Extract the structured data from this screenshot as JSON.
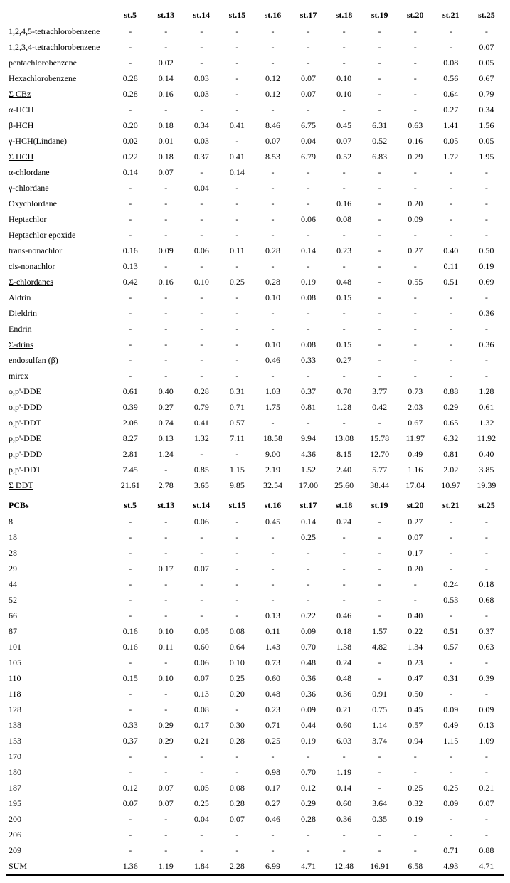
{
  "columns": [
    "st.5",
    "st.13",
    "st.14",
    "st.15",
    "st.16",
    "st.17",
    "st.18",
    "st.19",
    "st.20",
    "st.21",
    "st.25"
  ],
  "section1": {
    "rows": [
      {
        "label": "1,2,4,5-tetrachlorobenzene",
        "vals": [
          "-",
          "-",
          "-",
          "-",
          "-",
          "-",
          "-",
          "-",
          "-",
          "-",
          "-"
        ]
      },
      {
        "label": "1,2,3,4-tetrachlorobenzene",
        "vals": [
          "-",
          "-",
          "-",
          "-",
          "-",
          "-",
          "-",
          "-",
          "-",
          "-",
          "0.07"
        ]
      },
      {
        "label": "pentachlorobenzene",
        "vals": [
          "-",
          "0.02",
          "-",
          "-",
          "-",
          "-",
          "-",
          "-",
          "-",
          "0.08",
          "0.05"
        ]
      },
      {
        "label": "Hexachlorobenzene",
        "vals": [
          "0.28",
          "0.14",
          "0.03",
          "-",
          "0.12",
          "0.07",
          "0.10",
          "-",
          "-",
          "0.56",
          "0.67"
        ]
      },
      {
        "label": "Σ CBz",
        "underline": true,
        "vals": [
          "0.28",
          "0.16",
          "0.03",
          "-",
          "0.12",
          "0.07",
          "0.10",
          "-",
          "-",
          "0.64",
          "0.79"
        ]
      },
      {
        "label": "α-HCH",
        "vals": [
          "-",
          "-",
          "-",
          "-",
          "-",
          "-",
          "-",
          "-",
          "-",
          "0.27",
          "0.34"
        ]
      },
      {
        "label": "β-HCH",
        "vals": [
          "0.20",
          "0.18",
          "0.34",
          "0.41",
          "8.46",
          "6.75",
          "0.45",
          "6.31",
          "0.63",
          "1.41",
          "1.56"
        ]
      },
      {
        "label": "γ-HCH(Lindane)",
        "vals": [
          "0.02",
          "0.01",
          "0.03",
          "-",
          "0.07",
          "0.04",
          "0.07",
          "0.52",
          "0.16",
          "0.05",
          "0.05"
        ]
      },
      {
        "label": "Σ HCH",
        "underline": true,
        "vals": [
          "0.22",
          "0.18",
          "0.37",
          "0.41",
          "8.53",
          "6.79",
          "0.52",
          "6.83",
          "0.79",
          "1.72",
          "1.95"
        ]
      },
      {
        "label": "α-chlordane",
        "vals": [
          "0.14",
          "0.07",
          "-",
          "0.14",
          "-",
          "-",
          "-",
          "-",
          "-",
          "-",
          "-"
        ]
      },
      {
        "label": "γ-chlordane",
        "vals": [
          "-",
          "-",
          "0.04",
          "-",
          "-",
          "-",
          "-",
          "-",
          "-",
          "-",
          "-"
        ]
      },
      {
        "label": "Oxychlordane",
        "vals": [
          "-",
          "-",
          "-",
          "-",
          "-",
          "-",
          "0.16",
          "-",
          "0.20",
          "-",
          "-"
        ]
      },
      {
        "label": "Heptachlor",
        "vals": [
          "-",
          "-",
          "-",
          "-",
          "-",
          "0.06",
          "0.08",
          "-",
          "0.09",
          "-",
          "-"
        ]
      },
      {
        "label": "Heptachlor epoxide",
        "vals": [
          "-",
          "-",
          "-",
          "-",
          "-",
          "-",
          "-",
          "-",
          "-",
          "-",
          "-"
        ]
      },
      {
        "label": "trans-nonachlor",
        "vals": [
          "0.16",
          "0.09",
          "0.06",
          "0.11",
          "0.28",
          "0.14",
          "0.23",
          "-",
          "0.27",
          "0.40",
          "0.50"
        ]
      },
      {
        "label": "cis-nonachlor",
        "vals": [
          "0.13",
          "-",
          "-",
          "-",
          "-",
          "-",
          "-",
          "-",
          "-",
          "0.11",
          "0.19"
        ]
      },
      {
        "label": "Σ-chlordanes",
        "underline": true,
        "vals": [
          "0.42",
          "0.16",
          "0.10",
          "0.25",
          "0.28",
          "0.19",
          "0.48",
          "-",
          "0.55",
          "0.51",
          "0.69"
        ]
      },
      {
        "label": "Aldrin",
        "vals": [
          "-",
          "-",
          "-",
          "-",
          "0.10",
          "0.08",
          "0.15",
          "-",
          "-",
          "-",
          "-"
        ]
      },
      {
        "label": "Dieldrin",
        "vals": [
          "-",
          "-",
          "-",
          "-",
          "-",
          "-",
          "-",
          "-",
          "-",
          "-",
          "0.36"
        ]
      },
      {
        "label": "Endrin",
        "vals": [
          "-",
          "-",
          "-",
          "-",
          "-",
          "-",
          "-",
          "-",
          "-",
          "-",
          "-"
        ]
      },
      {
        "label": "Σ-drins",
        "underline": true,
        "vals": [
          "-",
          "-",
          "-",
          "-",
          "0.10",
          "0.08",
          "0.15",
          "-",
          "-",
          "-",
          "0.36"
        ]
      },
      {
        "label": "endosulfan (β)",
        "vals": [
          "-",
          "-",
          "-",
          "-",
          "0.46",
          "0.33",
          "0.27",
          "-",
          "-",
          "-",
          "-"
        ]
      },
      {
        "label": "mirex",
        "vals": [
          "-",
          "-",
          "-",
          "-",
          "-",
          "-",
          "-",
          "-",
          "-",
          "-",
          "-"
        ]
      },
      {
        "label": "o,p'-DDE",
        "vals": [
          "0.61",
          "0.40",
          "0.28",
          "0.31",
          "1.03",
          "0.37",
          "0.70",
          "3.77",
          "0.73",
          "0.88",
          "1.28"
        ]
      },
      {
        "label": "o,p'-DDD",
        "vals": [
          "0.39",
          "0.27",
          "0.79",
          "0.71",
          "1.75",
          "0.81",
          "1.28",
          "0.42",
          "2.03",
          "0.29",
          "0.61"
        ]
      },
      {
        "label": "o,p'-DDT",
        "vals": [
          "2.08",
          "0.74",
          "0.41",
          "0.57",
          "-",
          "-",
          "-",
          "-",
          "0.67",
          "0.65",
          "1.32"
        ]
      },
      {
        "label": "p,p'-DDE",
        "vals": [
          "8.27",
          "0.13",
          "1.32",
          "7.11",
          "18.58",
          "9.94",
          "13.08",
          "15.78",
          "11.97",
          "6.32",
          "11.92"
        ]
      },
      {
        "label": "p,p'-DDD",
        "vals": [
          "2.81",
          "1.24",
          "-",
          "-",
          "9.00",
          "4.36",
          "8.15",
          "12.70",
          "0.49",
          "0.81",
          "0.40"
        ]
      },
      {
        "label": "p,p'-DDT",
        "vals": [
          "7.45",
          "-",
          "0.85",
          "1.15",
          "2.19",
          "1.52",
          "2.40",
          "5.77",
          "1.16",
          "2.02",
          "3.85"
        ]
      },
      {
        "label": "Σ DDT",
        "underline": true,
        "vals": [
          "21.61",
          "2.78",
          "3.65",
          "9.85",
          "32.54",
          "17.00",
          "25.60",
          "38.44",
          "17.04",
          "10.97",
          "19.39"
        ]
      }
    ]
  },
  "section2": {
    "heading": "PCBs",
    "rows": [
      {
        "label": "8",
        "vals": [
          "-",
          "-",
          "0.06",
          "-",
          "0.45",
          "0.14",
          "0.24",
          "-",
          "0.27",
          "-",
          "-"
        ]
      },
      {
        "label": "18",
        "vals": [
          "-",
          "-",
          "-",
          "-",
          "-",
          "0.25",
          "-",
          "-",
          "0.07",
          "-",
          "-"
        ]
      },
      {
        "label": "28",
        "vals": [
          "-",
          "-",
          "-",
          "-",
          "-",
          "-",
          "-",
          "-",
          "0.17",
          "-",
          "-"
        ]
      },
      {
        "label": "29",
        "vals": [
          "-",
          "0.17",
          "0.07",
          "-",
          "-",
          "-",
          "-",
          "-",
          "0.20",
          "-",
          "-"
        ]
      },
      {
        "label": "44",
        "vals": [
          "-",
          "-",
          "-",
          "-",
          "-",
          "-",
          "-",
          "-",
          "-",
          "0.24",
          "0.18"
        ]
      },
      {
        "label": "52",
        "vals": [
          "-",
          "-",
          "-",
          "-",
          "-",
          "-",
          "-",
          "-",
          "-",
          "0.53",
          "0.68"
        ]
      },
      {
        "label": "66",
        "vals": [
          "-",
          "-",
          "-",
          "-",
          "0.13",
          "0.22",
          "0.46",
          "-",
          "0.40",
          "-",
          "-"
        ]
      },
      {
        "label": "87",
        "vals": [
          "0.16",
          "0.10",
          "0.05",
          "0.08",
          "0.11",
          "0.09",
          "0.18",
          "1.57",
          "0.22",
          "0.51",
          "0.37"
        ]
      },
      {
        "label": "101",
        "vals": [
          "0.16",
          "0.11",
          "0.60",
          "0.64",
          "1.43",
          "0.70",
          "1.38",
          "4.82",
          "1.34",
          "0.57",
          "0.63"
        ]
      },
      {
        "label": "105",
        "vals": [
          "-",
          "-",
          "0.06",
          "0.10",
          "0.73",
          "0.48",
          "0.24",
          "-",
          "0.23",
          "-",
          "-"
        ]
      },
      {
        "label": "110",
        "vals": [
          "0.15",
          "0.10",
          "0.07",
          "0.25",
          "0.60",
          "0.36",
          "0.48",
          "-",
          "0.47",
          "0.31",
          "0.39"
        ]
      },
      {
        "label": "118",
        "vals": [
          "-",
          "-",
          "0.13",
          "0.20",
          "0.48",
          "0.36",
          "0.36",
          "0.91",
          "0.50",
          "-",
          "-"
        ]
      },
      {
        "label": "128",
        "vals": [
          "-",
          "-",
          "0.08",
          "-",
          "0.23",
          "0.09",
          "0.21",
          "0.75",
          "0.45",
          "0.09",
          "0.09"
        ]
      },
      {
        "label": "138",
        "vals": [
          "0.33",
          "0.29",
          "0.17",
          "0.30",
          "0.71",
          "0.44",
          "0.60",
          "1.14",
          "0.57",
          "0.49",
          "0.13"
        ]
      },
      {
        "label": "153",
        "vals": [
          "0.37",
          "0.29",
          "0.21",
          "0.28",
          "0.25",
          "0.19",
          "6.03",
          "3.74",
          "0.94",
          "1.15",
          "1.09"
        ]
      },
      {
        "label": "170",
        "vals": [
          "-",
          "-",
          "-",
          "-",
          "-",
          "-",
          "-",
          "-",
          "-",
          "-",
          "-"
        ]
      },
      {
        "label": "180",
        "vals": [
          "-",
          "-",
          "-",
          "-",
          "0.98",
          "0.70",
          "1.19",
          "-",
          "-",
          "-",
          "-"
        ]
      },
      {
        "label": "187",
        "vals": [
          "0.12",
          "0.07",
          "0.05",
          "0.08",
          "0.17",
          "0.12",
          "0.14",
          "-",
          "0.25",
          "0.25",
          "0.21"
        ]
      },
      {
        "label": "195",
        "vals": [
          "0.07",
          "0.07",
          "0.25",
          "0.28",
          "0.27",
          "0.29",
          "0.60",
          "3.64",
          "0.32",
          "0.09",
          "0.07"
        ]
      },
      {
        "label": "200",
        "vals": [
          "-",
          "-",
          "0.04",
          "0.07",
          "0.46",
          "0.28",
          "0.36",
          "0.35",
          "0.19",
          "-",
          "-"
        ]
      },
      {
        "label": "206",
        "vals": [
          "-",
          "-",
          "-",
          "-",
          "-",
          "-",
          "-",
          "-",
          "-",
          "-",
          "-"
        ]
      },
      {
        "label": "209",
        "vals": [
          "-",
          "-",
          "-",
          "-",
          "-",
          "-",
          "-",
          "-",
          "-",
          "0.71",
          "0.88"
        ]
      },
      {
        "label": "SUM",
        "vals": [
          "1.36",
          "1.19",
          "1.84",
          "2.28",
          "6.99",
          "4.71",
          "12.48",
          "16.91",
          "6.58",
          "4.93",
          "4.71"
        ]
      }
    ]
  }
}
